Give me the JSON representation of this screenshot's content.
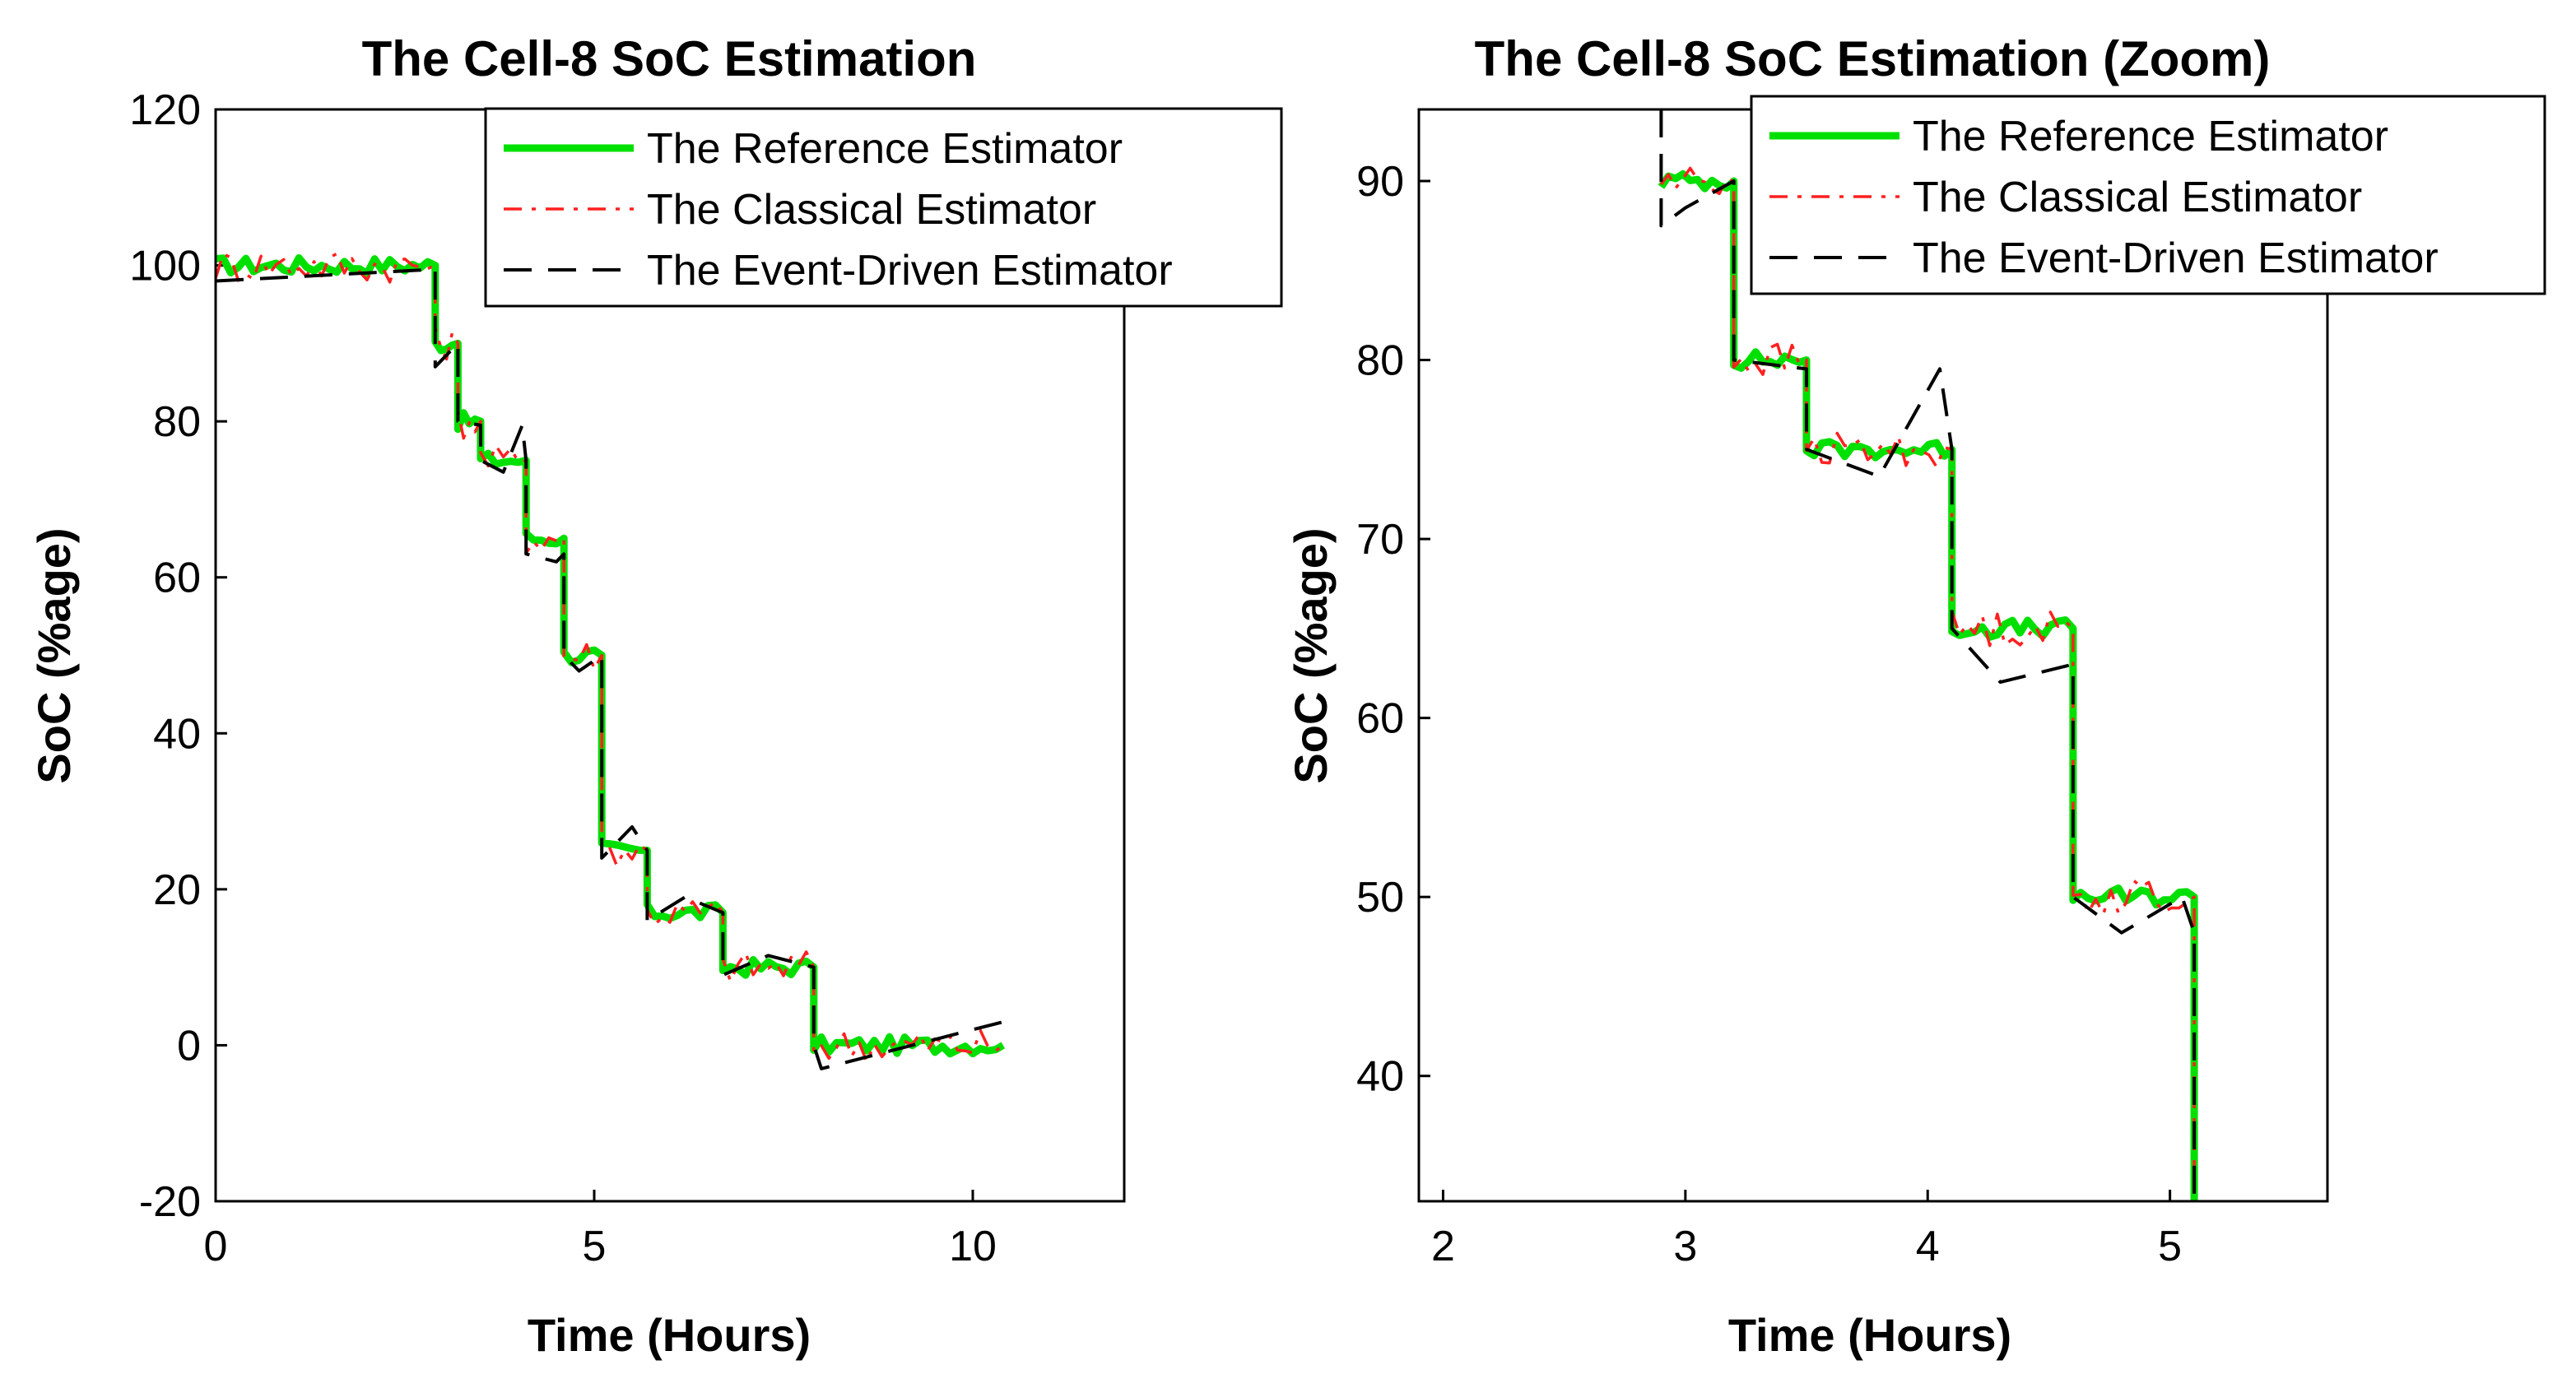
{
  "chart_data": [
    {
      "type": "line",
      "title": "The Cell-8 SoC Estimation",
      "xlabel": "Time (Hours)",
      "ylabel": "SoC (%age)",
      "xlim": [
        0,
        12
      ],
      "ylim": [
        -20,
        120
      ],
      "xticks": [
        0,
        5,
        10
      ],
      "yticks": [
        -20,
        0,
        20,
        40,
        60,
        80,
        100,
        120
      ],
      "xtick_labels": [
        "0",
        "5",
        "10"
      ],
      "ytick_labels": [
        "-20",
        "0",
        "20",
        "40",
        "60",
        "80",
        "100",
        "120"
      ],
      "legend_position": "top-right",
      "series": [
        {
          "name": "The Reference Estimator",
          "style": "solid",
          "color": "#00e000",
          "x": [
            0,
            2.9,
            2.9,
            3.2,
            3.2,
            3.5,
            3.5,
            4.1,
            4.1,
            4.6,
            4.6,
            5.1,
            5.1,
            5.7,
            5.7,
            6.7,
            6.7,
            7.9,
            7.9,
            10.4
          ],
          "y": [
            100,
            100,
            90,
            90,
            80,
            80,
            75,
            75,
            65,
            65,
            50,
            50,
            25,
            25,
            17,
            17,
            10,
            10,
            0,
            0
          ]
        },
        {
          "name": "The Classical Estimator",
          "style": "dash-dot",
          "color": "#ff2020",
          "x": [
            0,
            2.9,
            2.9,
            3.2,
            3.2,
            3.5,
            3.5,
            4.1,
            4.1,
            4.6,
            4.6,
            5.1,
            5.1,
            5.7,
            5.7,
            6.7,
            6.7,
            7.9,
            7.9,
            10.4
          ],
          "y": [
            100,
            100,
            90,
            90,
            80,
            80,
            75,
            75,
            65,
            65,
            50,
            50,
            25,
            25,
            17,
            17,
            10,
            10,
            0,
            0
          ]
        },
        {
          "name": "The Event-Driven Estimator",
          "style": "dashed",
          "color": "#000000",
          "x": [
            0,
            2.9,
            2.9,
            3.0,
            3.2,
            3.2,
            3.5,
            3.5,
            3.8,
            4.05,
            4.1,
            4.1,
            4.5,
            4.6,
            4.6,
            4.8,
            5.1,
            5.1,
            5.5,
            5.7,
            5.7,
            6.2,
            6.7,
            6.7,
            7.3,
            7.9,
            7.9,
            8.0,
            10.4
          ],
          "y": [
            98,
            99.5,
            87,
            88,
            90,
            80,
            79.5,
            75,
            73.5,
            79.5,
            75,
            63,
            62,
            63,
            50,
            48,
            50,
            24,
            28,
            25,
            16,
            19,
            17,
            9,
            11.5,
            10,
            0,
            -3,
            3
          ]
        }
      ]
    },
    {
      "type": "line",
      "title": "The Cell-8 SoC Estimation (Zoom)",
      "xlabel": "Time (Hours)",
      "ylabel": "SoC (%age)",
      "xlim": [
        1.9,
        5.65
      ],
      "ylim": [
        33,
        94
      ],
      "xticks": [
        2,
        3,
        4,
        5
      ],
      "yticks": [
        40,
        50,
        60,
        70,
        80,
        90
      ],
      "xtick_labels": [
        "2",
        "3",
        "4",
        "5"
      ],
      "ytick_labels": [
        "40",
        "50",
        "60",
        "70",
        "80",
        "90"
      ],
      "legend_position": "top-right",
      "series": [
        {
          "name": "The Reference Estimator",
          "style": "solid",
          "color": "#00e000",
          "x": [
            2.9,
            3.2,
            3.2,
            3.5,
            3.5,
            4.1,
            4.1,
            4.6,
            4.6,
            5.1,
            5.1
          ],
          "y": [
            90,
            90,
            80,
            80,
            75,
            75,
            65,
            65,
            50,
            50,
            33
          ]
        },
        {
          "name": "The Classical Estimator",
          "style": "dash-dot",
          "color": "#ff2020",
          "x": [
            2.9,
            3.2,
            3.2,
            3.5,
            3.5,
            4.1,
            4.1,
            4.6,
            4.6,
            5.1,
            5.1
          ],
          "y": [
            90,
            90,
            80,
            80,
            75,
            75,
            65,
            65,
            50,
            50,
            33
          ]
        },
        {
          "name": "The Event-Driven Estimator",
          "style": "dashed",
          "color": "#000000",
          "x": [
            2.9,
            2.9,
            3.0,
            3.2,
            3.2,
            3.5,
            3.5,
            3.8,
            4.05,
            4.1,
            4.1,
            4.3,
            4.6,
            4.6,
            4.8,
            5.05,
            5.1,
            5.1
          ],
          "y": [
            94,
            87.5,
            88.5,
            90,
            80,
            79.5,
            75,
            73.5,
            79.5,
            75,
            65,
            62,
            63,
            50,
            48,
            50,
            48,
            33
          ]
        }
      ]
    }
  ]
}
